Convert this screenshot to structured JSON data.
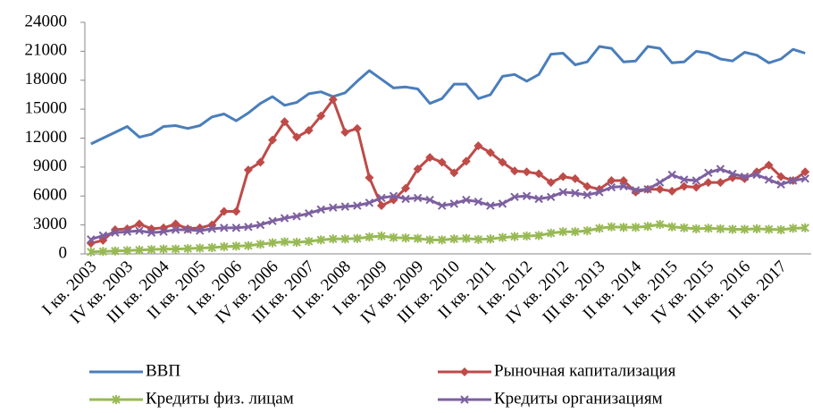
{
  "chart_data": {
    "type": "line",
    "categories": [
      "I кв. 2003",
      null,
      null,
      "IV кв. 2003",
      null,
      null,
      "III кв. 2004",
      null,
      null,
      "II кв. 2005",
      null,
      null,
      "I кв. 2006",
      null,
      null,
      "IV кв. 2006",
      null,
      null,
      "III кв. 2007",
      null,
      null,
      "II кв. 2008",
      null,
      null,
      "I кв. 2009",
      null,
      null,
      "IV кв. 2009",
      null,
      null,
      "III кв. 2010",
      null,
      null,
      "II кв. 2011",
      null,
      null,
      "I кв. 2012",
      null,
      null,
      "IV кв. 2012",
      null,
      null,
      "III кв. 2013",
      null,
      null,
      "II кв. 2014",
      null,
      null,
      "I кв. 2015",
      null,
      null,
      "IV кв. 2015",
      null,
      null,
      "III кв. 2016",
      null,
      null,
      "II кв. 2017",
      null,
      null
    ],
    "series": [
      {
        "name": "ВВП",
        "color": "#4a7ebb",
        "marker": "none",
        "values": [
          11400,
          12000,
          12600,
          13200,
          12100,
          12400,
          13200,
          13300,
          13000,
          13300,
          14200,
          14500,
          13800,
          14600,
          15600,
          16300,
          15400,
          15700,
          16600,
          16800,
          16300,
          16700,
          17900,
          19000,
          18100,
          17200,
          17300,
          17100,
          15600,
          16100,
          17600,
          17600,
          16100,
          16500,
          18400,
          18600,
          17900,
          18600,
          20700,
          20800,
          19600,
          19900,
          21500,
          21300,
          19900,
          20000,
          21500,
          21300,
          19800,
          19900,
          21000,
          20800,
          20200,
          20000,
          20900,
          20600,
          19800,
          20200,
          21200,
          20800
        ]
      },
      {
        "name": "Рыночная капитализация",
        "color": "#be4b48",
        "marker": "diamond",
        "values": [
          1100,
          1400,
          2500,
          2600,
          3100,
          2600,
          2700,
          3100,
          2600,
          2700,
          3000,
          4400,
          4400,
          8700,
          9500,
          11800,
          13700,
          12100,
          12800,
          14300,
          16000,
          12600,
          13000,
          7900,
          5000,
          5600,
          6800,
          8800,
          10000,
          9500,
          8400,
          9600,
          11200,
          10500,
          9500,
          8600,
          8500,
          8300,
          7400,
          8000,
          7800,
          7000,
          6700,
          7600,
          7600,
          6400,
          6700,
          6700,
          6500,
          7000,
          6900,
          7400,
          7400,
          7900,
          7800,
          8500,
          9200,
          8000,
          7600,
          8500
        ]
      },
      {
        "name": "Кредиты физ. лицам",
        "color": "#98b954",
        "marker": "star",
        "values": [
          200,
          250,
          300,
          350,
          400,
          450,
          500,
          500,
          550,
          600,
          650,
          750,
          800,
          850,
          1000,
          1150,
          1250,
          1200,
          1300,
          1450,
          1550,
          1550,
          1600,
          1750,
          1850,
          1700,
          1650,
          1600,
          1450,
          1450,
          1550,
          1600,
          1500,
          1550,
          1700,
          1800,
          1850,
          1900,
          2150,
          2300,
          2300,
          2400,
          2650,
          2800,
          2750,
          2750,
          2850,
          3050,
          2800,
          2700,
          2600,
          2650,
          2600,
          2550,
          2550,
          2600,
          2550,
          2500,
          2650,
          2700
        ]
      },
      {
        "name": "Кредиты организациям",
        "color": "#7d60a0",
        "marker": "x",
        "values": [
          1500,
          1900,
          2200,
          2300,
          2400,
          2200,
          2300,
          2500,
          2500,
          2400,
          2600,
          2700,
          2700,
          2800,
          3000,
          3400,
          3700,
          3900,
          4200,
          4600,
          4800,
          4900,
          5000,
          5300,
          5800,
          6000,
          5700,
          5800,
          5600,
          5000,
          5200,
          5600,
          5400,
          5000,
          5200,
          5900,
          6000,
          5700,
          5900,
          6400,
          6300,
          6100,
          6400,
          6900,
          7000,
          6600,
          6700,
          7400,
          8200,
          7700,
          7600,
          8400,
          8800,
          8300,
          8000,
          8200,
          7700,
          7200,
          7600,
          7800
        ]
      }
    ],
    "ylim": [
      0,
      24000
    ],
    "yticks": [
      0,
      3000,
      6000,
      9000,
      12000,
      15000,
      18000,
      21000,
      24000
    ],
    "grid": false,
    "legend": "bottom"
  }
}
